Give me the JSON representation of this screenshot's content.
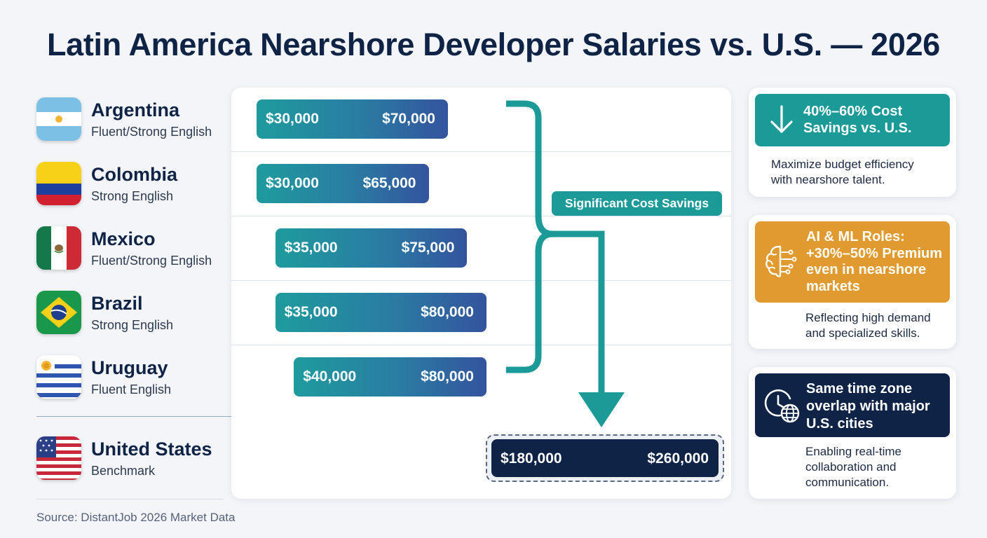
{
  "title": "Latin America Nearshore Developer Salaries vs. U.S. — 2026",
  "source": "Source: DistantJob 2026 Market Data",
  "countries": [
    {
      "name": "Argentina",
      "english": "Fluent/Strong English",
      "flag": "argentina-flag-icon"
    },
    {
      "name": "Colombia",
      "english": "Strong English",
      "flag": "colombia-flag-icon"
    },
    {
      "name": "Mexico",
      "english": "Fluent/Strong English",
      "flag": "mexico-flag-icon"
    },
    {
      "name": "Brazil",
      "english": "Strong English",
      "flag": "brazil-flag-icon"
    },
    {
      "name": "Uruguay",
      "english": "Fluent English",
      "flag": "uruguay-flag-icon"
    },
    {
      "name": "United States",
      "english": "Benchmark",
      "flag": "us-flag-icon"
    }
  ],
  "chart_data": {
    "type": "bar",
    "orientation": "horizontal",
    "subtype": "floating-range",
    "categories": [
      "Argentina",
      "Colombia",
      "Mexico",
      "Brazil",
      "Uruguay",
      "United States"
    ],
    "series": [
      {
        "values": [
          [
            30000,
            70000
          ],
          [
            30000,
            65000
          ],
          [
            35000,
            75000
          ],
          [
            35000,
            80000
          ],
          [
            40000,
            80000
          ],
          [
            180000,
            260000
          ]
        ]
      }
    ],
    "labels": [
      [
        "$30,000",
        "$70,000"
      ],
      [
        "$30,000",
        "$65,000"
      ],
      [
        "$35,000",
        "$75,000"
      ],
      [
        "$35,000",
        "$80,000"
      ],
      [
        "$40,000",
        "$80,000"
      ],
      [
        "$180,000",
        "$260,000"
      ]
    ],
    "annotation": "Significant Cost Savings",
    "colors": {
      "latam_start": "#1e9b9d",
      "latam_end": "#34549e",
      "us": "#0f2346",
      "accent": "#1b9a97"
    }
  },
  "cards": [
    {
      "icon": "arrow-down-icon",
      "heading": [
        "40%–60% Cost",
        "Savings vs. U.S."
      ],
      "body": [
        "Maximize budget efficiency",
        "with nearshore talent."
      ],
      "color": "#1b9a97"
    },
    {
      "icon": "ai-brain-icon",
      "heading": [
        "AI & ML Roles:",
        "+30%–50% Premium",
        "even in nearshore",
        "markets"
      ],
      "body": [
        "Reflecting high demand",
        "and specialized skills."
      ],
      "color": "#e09a2f"
    },
    {
      "icon": "clock-globe-icon",
      "heading": [
        "Same time zone",
        "overlap with major",
        "U.S. cities"
      ],
      "body": [
        "Enabling real-time",
        "collaboration and",
        "communication."
      ],
      "color": "#0f2346"
    }
  ]
}
